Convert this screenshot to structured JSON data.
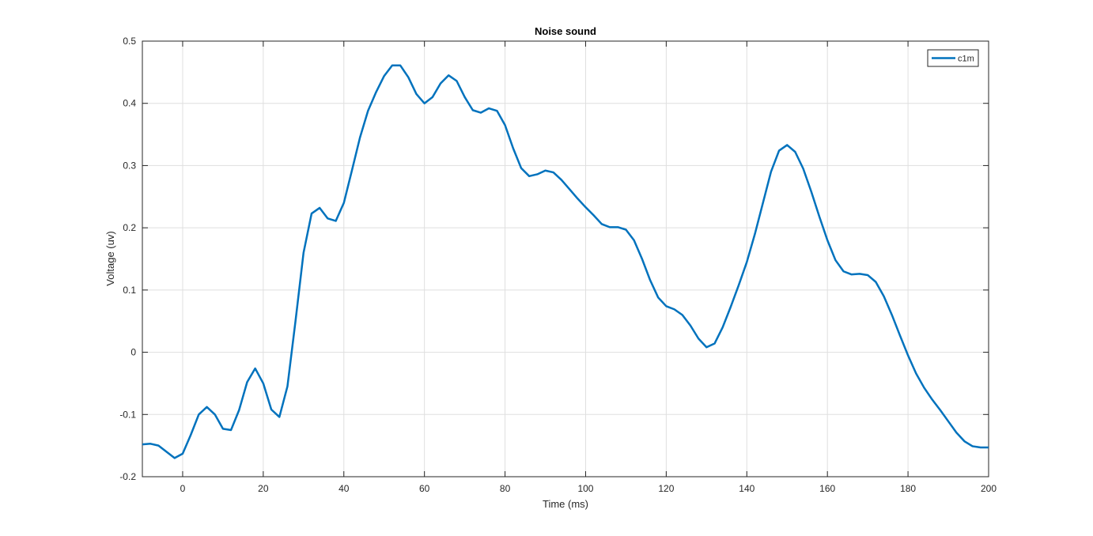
{
  "chart_data": {
    "type": "line",
    "title": "Noise sound",
    "xlabel": "Time (ms)",
    "ylabel": "Voltage (uv)",
    "x": [
      -10,
      -8,
      -6,
      -4,
      -2,
      0,
      2,
      4,
      6,
      8,
      10,
      12,
      14,
      16,
      18,
      20,
      22,
      24,
      26,
      28,
      30,
      32,
      34,
      36,
      38,
      40,
      42,
      44,
      46,
      48,
      50,
      52,
      54,
      56,
      58,
      60,
      62,
      64,
      66,
      68,
      70,
      72,
      74,
      76,
      78,
      80,
      82,
      84,
      86,
      88,
      90,
      92,
      94,
      96,
      98,
      100,
      102,
      104,
      106,
      108,
      110,
      112,
      114,
      116,
      118,
      120,
      122,
      124,
      126,
      128,
      130,
      132,
      134,
      136,
      138,
      140,
      142,
      144,
      146,
      148,
      150,
      152,
      154,
      156,
      158,
      160,
      162,
      164,
      166,
      168,
      170,
      172,
      174,
      176,
      178,
      180,
      182,
      184,
      186,
      188,
      190,
      192,
      194,
      196,
      198,
      200
    ],
    "series": [
      {
        "name": "c1m",
        "color": "#0072bd",
        "values": [
          -0.148,
          -0.147,
          -0.15,
          -0.16,
          -0.17,
          -0.163,
          -0.133,
          -0.1,
          -0.088,
          -0.1,
          -0.123,
          -0.125,
          -0.093,
          -0.048,
          -0.026,
          -0.05,
          -0.092,
          -0.104,
          -0.055,
          0.05,
          0.16,
          0.223,
          0.232,
          0.215,
          0.211,
          0.24,
          0.292,
          0.345,
          0.388,
          0.418,
          0.444,
          0.461,
          0.461,
          0.442,
          0.415,
          0.4,
          0.41,
          0.432,
          0.445,
          0.436,
          0.41,
          0.389,
          0.385,
          0.392,
          0.388,
          0.365,
          0.328,
          0.296,
          0.283,
          0.286,
          0.292,
          0.289,
          0.277,
          0.262,
          0.247,
          0.233,
          0.22,
          0.206,
          0.201,
          0.201,
          0.197,
          0.18,
          0.15,
          0.116,
          0.088,
          0.074,
          0.069,
          0.06,
          0.043,
          0.022,
          0.008,
          0.014,
          0.04,
          0.073,
          0.108,
          0.145,
          0.19,
          0.24,
          0.29,
          0.324,
          0.333,
          0.322,
          0.295,
          0.258,
          0.218,
          0.18,
          0.148,
          0.13,
          0.125,
          0.126,
          0.124,
          0.113,
          0.09,
          0.06,
          0.027,
          -0.005,
          -0.034,
          -0.057,
          -0.076,
          -0.093,
          -0.111,
          -0.129,
          -0.143,
          -0.151,
          -0.153,
          -0.153
        ]
      }
    ],
    "xlim": [
      -10,
      200
    ],
    "xticks": [
      0,
      20,
      40,
      60,
      80,
      100,
      120,
      140,
      160,
      180,
      200
    ],
    "ylim": [
      -0.2,
      0.5
    ],
    "yticks": [
      -0.2,
      -0.1,
      0,
      0.1,
      0.2,
      0.3,
      0.4,
      0.5
    ],
    "grid": true,
    "legend": "northeast"
  }
}
